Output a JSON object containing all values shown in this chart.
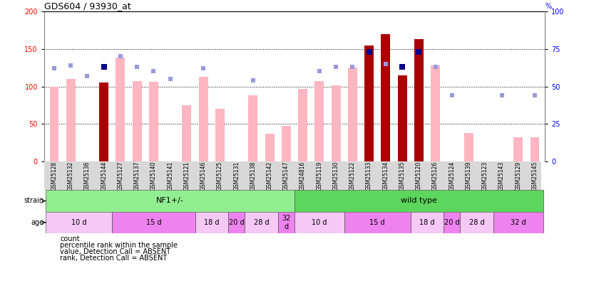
{
  "title": "GDS604 / 93930_at",
  "samples": [
    "GSM25128",
    "GSM25132",
    "GSM25136",
    "GSM25144",
    "GSM25127",
    "GSM25137",
    "GSM25140",
    "GSM25141",
    "GSM25121",
    "GSM25146",
    "GSM25125",
    "GSM25131",
    "GSM25138",
    "GSM25142",
    "GSM25147",
    "GSM24816",
    "GSM25119",
    "GSM25130",
    "GSM25122",
    "GSM25133",
    "GSM25134",
    "GSM25135",
    "GSM25120",
    "GSM25126",
    "GSM25124",
    "GSM25139",
    "GSM25123",
    "GSM25143",
    "GSM25129",
    "GSM25145"
  ],
  "count_present": [
    null,
    null,
    null,
    105,
    null,
    null,
    null,
    null,
    null,
    null,
    null,
    null,
    null,
    null,
    null,
    null,
    null,
    null,
    null,
    155,
    170,
    115,
    163,
    null,
    null,
    null,
    null,
    null,
    null,
    null
  ],
  "count_absent": [
    100,
    110,
    null,
    null,
    138,
    107,
    106,
    null,
    75,
    113,
    70,
    null,
    88,
    37,
    47,
    97,
    107,
    101,
    125,
    null,
    null,
    null,
    null,
    128,
    null,
    38,
    null,
    null,
    32,
    32
  ],
  "rank_present": [
    null,
    null,
    null,
    63,
    null,
    null,
    null,
    null,
    null,
    null,
    null,
    null,
    null,
    null,
    null,
    null,
    null,
    null,
    null,
    73,
    null,
    63,
    73,
    null,
    null,
    null,
    null,
    null,
    null,
    null
  ],
  "rank_absent": [
    62,
    64,
    57,
    null,
    70,
    63,
    60,
    55,
    null,
    62,
    null,
    null,
    54,
    null,
    null,
    null,
    60,
    63,
    63,
    null,
    65,
    null,
    null,
    63,
    44,
    null,
    null,
    44,
    null,
    44
  ],
  "strain_groups": [
    {
      "label": "NF1+/-",
      "start": 0,
      "end": 14,
      "color": "#90ee90"
    },
    {
      "label": "wild type",
      "start": 15,
      "end": 29,
      "color": "#5cd65c"
    }
  ],
  "age_groups": [
    {
      "label": "10 d",
      "start": 0,
      "end": 3,
      "color": "#f5c8f5"
    },
    {
      "label": "15 d",
      "start": 4,
      "end": 8,
      "color": "#ee82ee"
    },
    {
      "label": "18 d",
      "start": 9,
      "end": 10,
      "color": "#f5c8f5"
    },
    {
      "label": "20 d",
      "start": 11,
      "end": 11,
      "color": "#ee82ee"
    },
    {
      "label": "28 d",
      "start": 12,
      "end": 13,
      "color": "#f5c8f5"
    },
    {
      "label": "32\nd",
      "start": 14,
      "end": 14,
      "color": "#ee82ee"
    },
    {
      "label": "10 d",
      "start": 15,
      "end": 17,
      "color": "#f5c8f5"
    },
    {
      "label": "15 d",
      "start": 18,
      "end": 21,
      "color": "#ee82ee"
    },
    {
      "label": "18 d",
      "start": 22,
      "end": 23,
      "color": "#f5c8f5"
    },
    {
      "label": "20 d",
      "start": 24,
      "end": 24,
      "color": "#ee82ee"
    },
    {
      "label": "28 d",
      "start": 25,
      "end": 26,
      "color": "#f5c8f5"
    },
    {
      "label": "32 d",
      "start": 27,
      "end": 29,
      "color": "#ee82ee"
    }
  ],
  "color_count_present": "#aa0000",
  "color_count_absent": "#ffb6c1",
  "color_rank_present": "#00008b",
  "color_rank_absent": "#9999dd",
  "ylim_left": [
    0,
    200
  ],
  "ylim_right": [
    0,
    100
  ],
  "yticks_left": [
    0,
    50,
    100,
    150,
    200
  ],
  "yticks_right": [
    0,
    25,
    50,
    75,
    100
  ],
  "bar_width": 0.55
}
